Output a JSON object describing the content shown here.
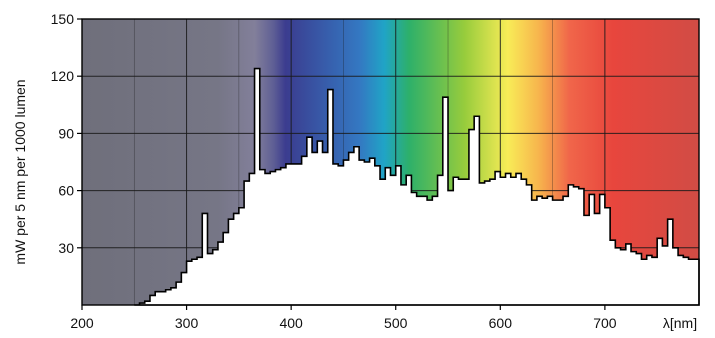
{
  "chart_data": {
    "type": "area",
    "title": "",
    "xlabel": "λ[nm]",
    "ylabel": "mW per 5 nm per 1000 lumen",
    "xlim": [
      200,
      790
    ],
    "ylim": [
      0,
      150
    ],
    "x_ticks": [
      200,
      300,
      400,
      500,
      600,
      700
    ],
    "x_tick_labels": [
      "200",
      "300",
      "400",
      "500",
      "600",
      "700"
    ],
    "y_ticks": [
      30,
      60,
      90,
      120,
      150
    ],
    "y_tick_labels": [
      "30",
      "60",
      "90",
      "120",
      "150"
    ],
    "grid": true,
    "legend": "none",
    "background": "visible spectrum gradient (violet to red)",
    "series": [
      {
        "values": [
          [
            250,
            0
          ],
          [
            255,
            1
          ],
          [
            260,
            2
          ],
          [
            265,
            5
          ],
          [
            270,
            7
          ],
          [
            275,
            7
          ],
          [
            280,
            8
          ],
          [
            285,
            9
          ],
          [
            290,
            12
          ],
          [
            295,
            17
          ],
          [
            300,
            23
          ],
          [
            305,
            24
          ],
          [
            310,
            25
          ],
          [
            315,
            48
          ],
          [
            320,
            27
          ],
          [
            325,
            29
          ],
          [
            330,
            33
          ],
          [
            335,
            38
          ],
          [
            340,
            45
          ],
          [
            345,
            48
          ],
          [
            350,
            51
          ],
          [
            355,
            65
          ],
          [
            360,
            69
          ],
          [
            365,
            124
          ],
          [
            370,
            71
          ],
          [
            375,
            69
          ],
          [
            380,
            70
          ],
          [
            385,
            71
          ],
          [
            390,
            72
          ],
          [
            395,
            74
          ],
          [
            400,
            74
          ],
          [
            405,
            74
          ],
          [
            410,
            78
          ],
          [
            415,
            88
          ],
          [
            420,
            80
          ],
          [
            425,
            86
          ],
          [
            430,
            80
          ],
          [
            435,
            113
          ],
          [
            440,
            74
          ],
          [
            445,
            73
          ],
          [
            450,
            76
          ],
          [
            455,
            80
          ],
          [
            460,
            83
          ],
          [
            465,
            76
          ],
          [
            470,
            75
          ],
          [
            475,
            77
          ],
          [
            480,
            73
          ],
          [
            485,
            66
          ],
          [
            490,
            72
          ],
          [
            495,
            68
          ],
          [
            500,
            73
          ],
          [
            505,
            63
          ],
          [
            510,
            68
          ],
          [
            515,
            59
          ],
          [
            520,
            57
          ],
          [
            525,
            57
          ],
          [
            530,
            55
          ],
          [
            535,
            57
          ],
          [
            540,
            68
          ],
          [
            545,
            109
          ],
          [
            550,
            60
          ],
          [
            555,
            67
          ],
          [
            560,
            66
          ],
          [
            565,
            66
          ],
          [
            570,
            92
          ],
          [
            575,
            99
          ],
          [
            580,
            64
          ],
          [
            585,
            65
          ],
          [
            590,
            66
          ],
          [
            595,
            70
          ],
          [
            600,
            67
          ],
          [
            605,
            69
          ],
          [
            610,
            67
          ],
          [
            615,
            69
          ],
          [
            620,
            66
          ],
          [
            625,
            63
          ],
          [
            630,
            55
          ],
          [
            635,
            57
          ],
          [
            640,
            56
          ],
          [
            645,
            57
          ],
          [
            650,
            55
          ],
          [
            655,
            55
          ],
          [
            660,
            57
          ],
          [
            665,
            63
          ],
          [
            670,
            62
          ],
          [
            675,
            61
          ],
          [
            680,
            47
          ],
          [
            685,
            58
          ],
          [
            690,
            48
          ],
          [
            695,
            58
          ],
          [
            700,
            51
          ],
          [
            705,
            34
          ],
          [
            710,
            30
          ],
          [
            715,
            29
          ],
          [
            720,
            32
          ],
          [
            725,
            28
          ],
          [
            730,
            27
          ],
          [
            735,
            24
          ],
          [
            740,
            26
          ],
          [
            745,
            25
          ],
          [
            750,
            35
          ],
          [
            755,
            31
          ],
          [
            760,
            45
          ],
          [
            765,
            30
          ],
          [
            770,
            26
          ],
          [
            775,
            25
          ],
          [
            780,
            24
          ],
          [
            785,
            24
          ]
        ]
      }
    ]
  },
  "colors": {
    "axis": "#000000",
    "grid": "#1a1a1a",
    "plot_border": "#000000",
    "curve_fill": "#ffffff",
    "spectrum_stops": [
      "#6f6f7b",
      "#767686",
      "#827f9a",
      "#5f5f95",
      "#3b3c8f",
      "#3478c2",
      "#20a4c6",
      "#2db06a",
      "#97cc3c",
      "#f8ec57",
      "#f7b54d",
      "#f0664a",
      "#e8463d",
      "#d14c45"
    ]
  }
}
